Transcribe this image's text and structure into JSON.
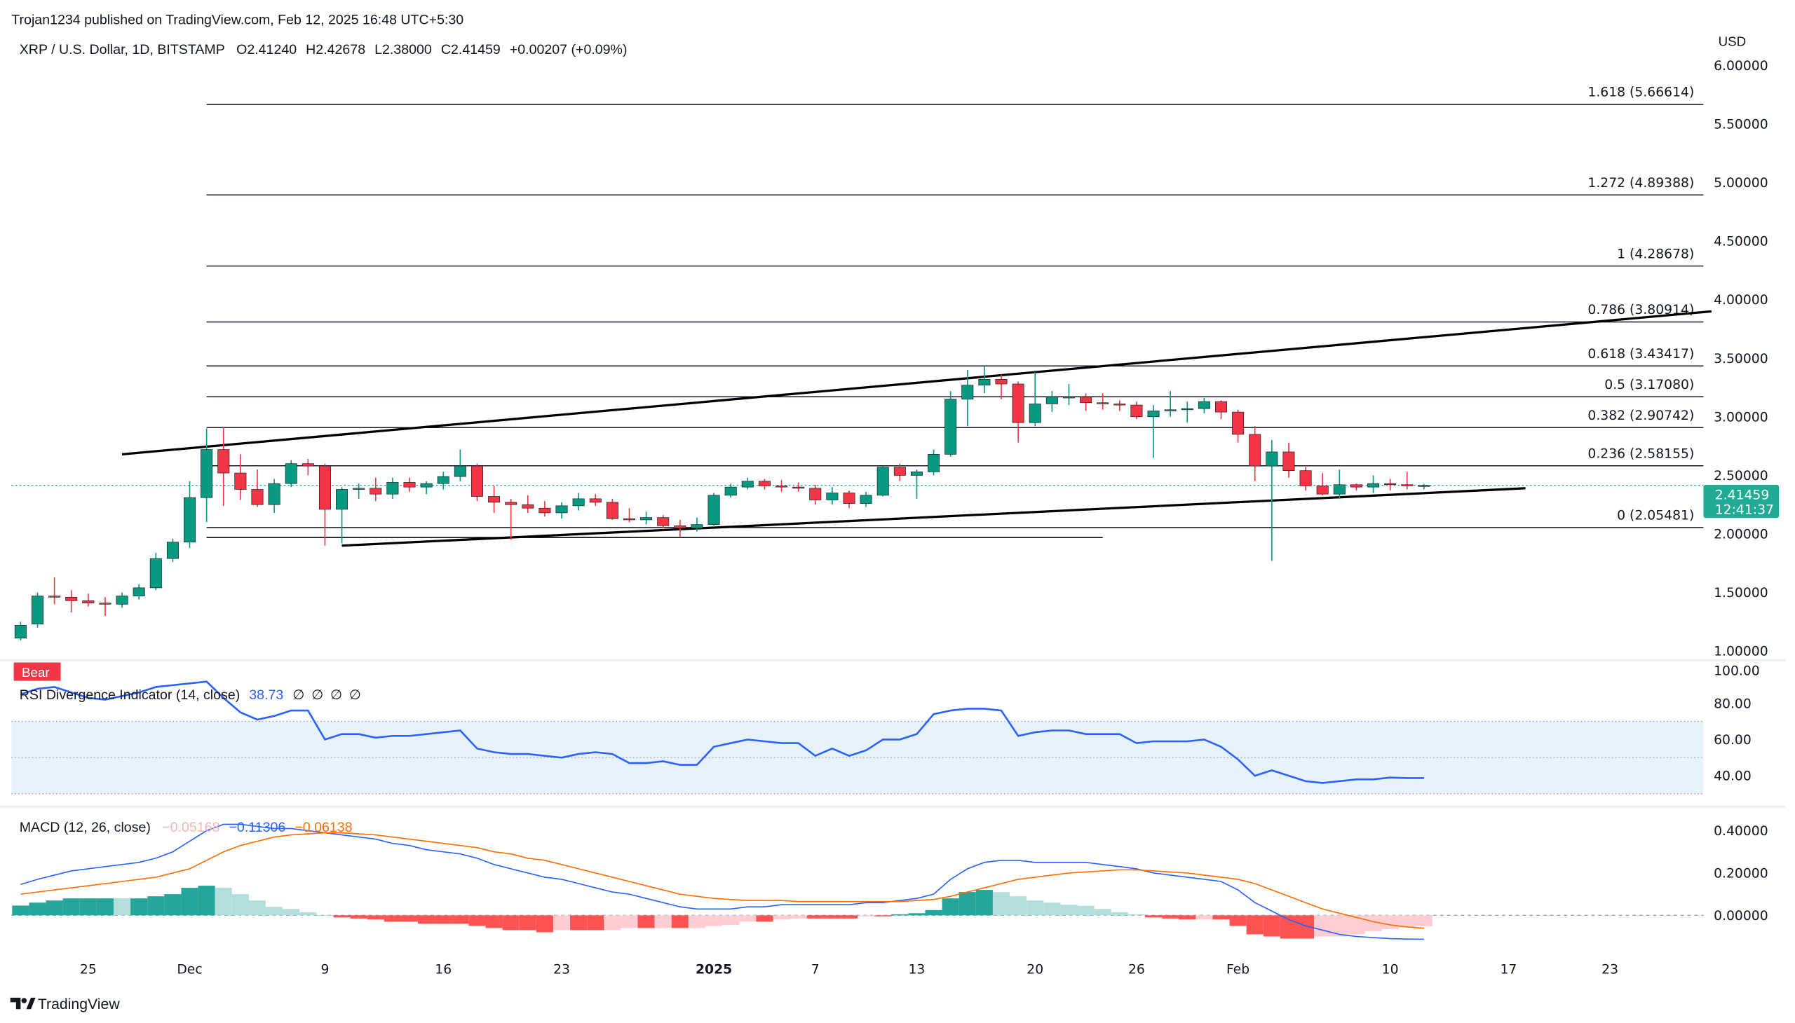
{
  "header": {
    "published": "Trojan1234 published on TradingView.com, Feb 12, 2025 16:48 UTC+5:30",
    "symbol": "XRP / U.S. Dollar, 1D, BITSTAMP",
    "open": "O2.41240",
    "high": "H2.42678",
    "low": "L2.38000",
    "close": "C2.41459",
    "change": "+0.00207 (+0.09%)"
  },
  "currency": "USD",
  "last_price": {
    "value": "2.41459",
    "countdown": "12:41:37",
    "color": "#22ab94"
  },
  "footer": {
    "brand": "TradingView"
  },
  "colors": {
    "up": "#089981",
    "down": "#f23645",
    "rsi": "#2962ff",
    "macd": "#2962ff",
    "signal": "#ff6d00"
  },
  "chart_data": {
    "type": "candlestick",
    "price_axis": {
      "ticks": [
        "1.00000",
        "1.50000",
        "2.00000",
        "2.50000",
        "3.00000",
        "3.50000",
        "4.00000",
        "4.50000",
        "5.00000",
        "5.50000",
        "6.00000"
      ],
      "range": [
        1.0,
        6.0
      ]
    },
    "x_ticks": [
      {
        "date": "2024-11-25",
        "label": "25"
      },
      {
        "date": "2024-12-01",
        "label": "Dec"
      },
      {
        "date": "2024-12-09",
        "label": "9"
      },
      {
        "date": "2024-12-16",
        "label": "16"
      },
      {
        "date": "2024-12-23",
        "label": "23"
      },
      {
        "date": "2025-01-01",
        "label": "2025",
        "bold": true
      },
      {
        "date": "2025-01-07",
        "label": "7"
      },
      {
        "date": "2025-01-13",
        "label": "13"
      },
      {
        "date": "2025-01-20",
        "label": "20"
      },
      {
        "date": "2025-01-26",
        "label": "26"
      },
      {
        "date": "2025-02-01",
        "label": "Feb"
      },
      {
        "date": "2025-02-10",
        "label": "10"
      },
      {
        "date": "2025-02-17",
        "label": "17"
      },
      {
        "date": "2025-02-23",
        "label": "23"
      }
    ],
    "candles_columns": [
      "date",
      "open",
      "high",
      "low",
      "close"
    ],
    "candles": [
      [
        "2024-11-21",
        1.11,
        1.25,
        1.09,
        1.22
      ],
      [
        "2024-11-22",
        1.23,
        1.5,
        1.2,
        1.47
      ],
      [
        "2024-11-23",
        1.47,
        1.63,
        1.4,
        1.46
      ],
      [
        "2024-11-24",
        1.46,
        1.52,
        1.33,
        1.43
      ],
      [
        "2024-11-25",
        1.43,
        1.49,
        1.38,
        1.41
      ],
      [
        "2024-11-26",
        1.41,
        1.46,
        1.3,
        1.4
      ],
      [
        "2024-11-27",
        1.4,
        1.5,
        1.37,
        1.47
      ],
      [
        "2024-11-28",
        1.47,
        1.57,
        1.44,
        1.54
      ],
      [
        "2024-11-29",
        1.54,
        1.84,
        1.52,
        1.79
      ],
      [
        "2024-11-30",
        1.79,
        1.96,
        1.76,
        1.93
      ],
      [
        "2024-12-01",
        1.93,
        2.45,
        1.88,
        2.31
      ],
      [
        "2024-12-02",
        2.31,
        2.9,
        2.1,
        2.72
      ],
      [
        "2024-12-03",
        2.72,
        2.91,
        2.24,
        2.52
      ],
      [
        "2024-12-04",
        2.52,
        2.68,
        2.29,
        2.38
      ],
      [
        "2024-12-05",
        2.38,
        2.55,
        2.23,
        2.25
      ],
      [
        "2024-12-06",
        2.25,
        2.47,
        2.18,
        2.43
      ],
      [
        "2024-12-07",
        2.43,
        2.63,
        2.4,
        2.6
      ],
      [
        "2024-12-08",
        2.6,
        2.64,
        2.5,
        2.58
      ],
      [
        "2024-12-09",
        2.58,
        2.6,
        1.9,
        2.21
      ],
      [
        "2024-12-10",
        2.21,
        2.4,
        1.92,
        2.38
      ],
      [
        "2024-12-11",
        2.38,
        2.43,
        2.3,
        2.39
      ],
      [
        "2024-12-12",
        2.39,
        2.48,
        2.28,
        2.34
      ],
      [
        "2024-12-13",
        2.34,
        2.48,
        2.3,
        2.44
      ],
      [
        "2024-12-14",
        2.44,
        2.48,
        2.36,
        2.4
      ],
      [
        "2024-12-15",
        2.4,
        2.45,
        2.34,
        2.43
      ],
      [
        "2024-12-16",
        2.43,
        2.53,
        2.38,
        2.49
      ],
      [
        "2024-12-17",
        2.49,
        2.72,
        2.45,
        2.58
      ],
      [
        "2024-12-18",
        2.58,
        2.6,
        2.28,
        2.32
      ],
      [
        "2024-12-19",
        2.32,
        2.41,
        2.18,
        2.27
      ],
      [
        "2024-12-20",
        2.27,
        2.3,
        1.95,
        2.25
      ],
      [
        "2024-12-21",
        2.25,
        2.33,
        2.18,
        2.22
      ],
      [
        "2024-12-22",
        2.22,
        2.28,
        2.15,
        2.18
      ],
      [
        "2024-12-23",
        2.18,
        2.27,
        2.13,
        2.24
      ],
      [
        "2024-12-24",
        2.24,
        2.35,
        2.2,
        2.3
      ],
      [
        "2024-12-25",
        2.3,
        2.34,
        2.24,
        2.27
      ],
      [
        "2024-12-26",
        2.27,
        2.3,
        2.12,
        2.13
      ],
      [
        "2024-12-27",
        2.13,
        2.22,
        2.1,
        2.12
      ],
      [
        "2024-12-28",
        2.12,
        2.19,
        2.08,
        2.14
      ],
      [
        "2024-12-29",
        2.14,
        2.16,
        2.05,
        2.07
      ],
      [
        "2024-12-30",
        2.07,
        2.12,
        1.97,
        2.05
      ],
      [
        "2024-12-31",
        2.05,
        2.14,
        2.02,
        2.08
      ],
      [
        "2025-01-01",
        2.08,
        2.35,
        2.07,
        2.33
      ],
      [
        "2025-01-02",
        2.33,
        2.43,
        2.31,
        2.4
      ],
      [
        "2025-01-03",
        2.4,
        2.48,
        2.38,
        2.45
      ],
      [
        "2025-01-04",
        2.45,
        2.47,
        2.38,
        2.41
      ],
      [
        "2025-01-05",
        2.41,
        2.46,
        2.36,
        2.4
      ],
      [
        "2025-01-06",
        2.4,
        2.44,
        2.36,
        2.39
      ],
      [
        "2025-01-07",
        2.39,
        2.42,
        2.25,
        2.29
      ],
      [
        "2025-01-08",
        2.29,
        2.4,
        2.25,
        2.35
      ],
      [
        "2025-01-09",
        2.35,
        2.37,
        2.22,
        2.26
      ],
      [
        "2025-01-10",
        2.26,
        2.36,
        2.23,
        2.33
      ],
      [
        "2025-01-11",
        2.33,
        2.58,
        2.32,
        2.57
      ],
      [
        "2025-01-12",
        2.57,
        2.6,
        2.45,
        2.5
      ],
      [
        "2025-01-13",
        2.5,
        2.55,
        2.3,
        2.53
      ],
      [
        "2025-01-14",
        2.53,
        2.72,
        2.5,
        2.68
      ],
      [
        "2025-01-15",
        2.68,
        3.22,
        2.66,
        3.15
      ],
      [
        "2025-01-16",
        3.15,
        3.4,
        2.92,
        3.27
      ],
      [
        "2025-01-17",
        3.27,
        3.43,
        3.2,
        3.32
      ],
      [
        "2025-01-18",
        3.32,
        3.36,
        3.15,
        3.28
      ],
      [
        "2025-01-19",
        3.28,
        3.3,
        2.78,
        2.95
      ],
      [
        "2025-01-20",
        2.95,
        3.38,
        2.92,
        3.11
      ],
      [
        "2025-01-21",
        3.11,
        3.22,
        3.04,
        3.17
      ],
      [
        "2025-01-22",
        3.17,
        3.28,
        3.1,
        3.17
      ],
      [
        "2025-01-23",
        3.17,
        3.2,
        3.05,
        3.12
      ],
      [
        "2025-01-24",
        3.12,
        3.2,
        3.06,
        3.11
      ],
      [
        "2025-01-25",
        3.11,
        3.14,
        3.05,
        3.1
      ],
      [
        "2025-01-26",
        3.1,
        3.13,
        2.98,
        3.0
      ],
      [
        "2025-01-27",
        3.0,
        3.1,
        2.65,
        3.05
      ],
      [
        "2025-01-28",
        3.05,
        3.22,
        3.0,
        3.06
      ],
      [
        "2025-01-29",
        3.06,
        3.13,
        2.95,
        3.07
      ],
      [
        "2025-01-30",
        3.07,
        3.16,
        3.03,
        3.13
      ],
      [
        "2025-01-31",
        3.13,
        3.14,
        2.98,
        3.04
      ],
      [
        "2025-02-01",
        3.04,
        3.06,
        2.78,
        2.85
      ],
      [
        "2025-02-02",
        2.85,
        2.92,
        2.45,
        2.58
      ],
      [
        "2025-02-03",
        2.58,
        2.8,
        1.77,
        2.7
      ],
      [
        "2025-02-04",
        2.7,
        2.78,
        2.48,
        2.54
      ],
      [
        "2025-02-05",
        2.54,
        2.57,
        2.37,
        2.41
      ],
      [
        "2025-02-06",
        2.41,
        2.52,
        2.33,
        2.34
      ],
      [
        "2025-02-07",
        2.34,
        2.55,
        2.3,
        2.42
      ],
      [
        "2025-02-08",
        2.42,
        2.43,
        2.37,
        2.4
      ],
      [
        "2025-02-09",
        2.4,
        2.5,
        2.35,
        2.43
      ],
      [
        "2025-02-10",
        2.43,
        2.47,
        2.37,
        2.42
      ],
      [
        "2025-02-11",
        2.42,
        2.53,
        2.38,
        2.41
      ],
      [
        "2025-02-12",
        2.4124,
        2.42678,
        2.38,
        2.41459
      ]
    ],
    "fibonacci": {
      "start_date": "2024-12-02",
      "levels": [
        {
          "ratio": "1.618",
          "price": 5.66614,
          "label": "1.618 (5.66614)"
        },
        {
          "ratio": "1.272",
          "price": 4.89388,
          "label": "1.272 (4.89388)"
        },
        {
          "ratio": "1",
          "price": 4.28678,
          "label": "1 (4.28678)"
        },
        {
          "ratio": "0.786",
          "price": 3.80914,
          "label": "0.786 (3.80914)"
        },
        {
          "ratio": "0.618",
          "price": 3.43417,
          "label": "0.618 (3.43417)"
        },
        {
          "ratio": "0.5",
          "price": 3.1708,
          "label": "0.5 (3.17080)"
        },
        {
          "ratio": "0.382",
          "price": 2.90742,
          "label": "0.382 (2.90742)"
        },
        {
          "ratio": "0.236",
          "price": 2.58155,
          "label": "0.236 (2.58155)"
        },
        {
          "ratio": "0",
          "price": 2.05481,
          "label": "0 (2.05481)"
        }
      ]
    },
    "trendlines": [
      {
        "from": [
          "2024-11-27",
          2.68
        ],
        "to": [
          "2025-03-01",
          3.9
        ]
      },
      {
        "from": [
          "2024-12-10",
          1.9
        ],
        "to": [
          "2025-02-18",
          2.39
        ]
      },
      {
        "from": [
          "2024-12-02",
          1.97
        ],
        "to": [
          "2025-01-24",
          1.97
        ]
      }
    ],
    "rsi": {
      "title": "RSI Divergence Indicator (14, close)",
      "value": "38.73",
      "na_markers": [
        "∅",
        "∅",
        "∅",
        "∅"
      ],
      "badge": "Bear",
      "ticks": [
        "100.00",
        "80.00",
        "60.00",
        "40.00"
      ],
      "range": [
        30,
        100
      ],
      "band": [
        30,
        70
      ],
      "values": [
        85,
        88,
        89,
        86,
        83,
        82,
        84,
        86,
        89,
        90,
        91,
        92,
        83,
        75,
        71,
        73,
        76,
        76,
        60,
        63,
        63,
        61,
        62,
        62,
        63,
        64,
        65,
        55,
        53,
        52,
        52,
        51,
        50,
        52,
        53,
        52,
        47,
        47,
        48,
        46,
        46,
        56,
        58,
        60,
        59,
        58,
        58,
        51,
        55,
        51,
        54,
        60,
        60,
        63,
        74,
        76,
        77,
        77,
        76,
        62,
        64,
        65,
        65,
        63,
        63,
        63,
        58,
        59,
        59,
        59,
        60,
        56,
        49,
        40,
        43,
        40,
        37,
        36,
        37,
        38,
        38,
        39,
        38.7,
        38.73
      ]
    },
    "macd": {
      "title": "MACD (12, 26, close)",
      "histogram_value": "−0.05168",
      "macd_value": "−0.11306",
      "signal_value": "−0.06138",
      "ticks": [
        "0.40000",
        "0.20000",
        "0.00000"
      ],
      "macd": [
        0.146,
        0.17,
        0.19,
        0.21,
        0.22,
        0.23,
        0.24,
        0.25,
        0.27,
        0.3,
        0.35,
        0.4,
        0.43,
        0.43,
        0.42,
        0.41,
        0.41,
        0.4,
        0.39,
        0.38,
        0.37,
        0.36,
        0.34,
        0.33,
        0.31,
        0.3,
        0.29,
        0.27,
        0.24,
        0.22,
        0.2,
        0.18,
        0.17,
        0.15,
        0.13,
        0.11,
        0.1,
        0.08,
        0.06,
        0.04,
        0.03,
        0.03,
        0.03,
        0.04,
        0.04,
        0.05,
        0.05,
        0.05,
        0.05,
        0.05,
        0.06,
        0.06,
        0.07,
        0.08,
        0.1,
        0.17,
        0.22,
        0.25,
        0.26,
        0.26,
        0.25,
        0.25,
        0.25,
        0.25,
        0.24,
        0.23,
        0.22,
        0.2,
        0.19,
        0.18,
        0.17,
        0.16,
        0.12,
        0.06,
        0.02,
        -0.02,
        -0.05,
        -0.07,
        -0.09,
        -0.1,
        -0.105,
        -0.11,
        -0.112,
        -0.113
      ],
      "signal": [
        0.1,
        0.11,
        0.12,
        0.13,
        0.14,
        0.15,
        0.16,
        0.17,
        0.18,
        0.2,
        0.22,
        0.26,
        0.3,
        0.33,
        0.35,
        0.37,
        0.38,
        0.385,
        0.39,
        0.39,
        0.385,
        0.38,
        0.37,
        0.36,
        0.35,
        0.34,
        0.33,
        0.32,
        0.3,
        0.29,
        0.27,
        0.26,
        0.24,
        0.22,
        0.2,
        0.18,
        0.16,
        0.14,
        0.12,
        0.1,
        0.09,
        0.08,
        0.075,
        0.07,
        0.07,
        0.07,
        0.065,
        0.065,
        0.065,
        0.065,
        0.065,
        0.065,
        0.065,
        0.07,
        0.075,
        0.09,
        0.11,
        0.13,
        0.15,
        0.17,
        0.18,
        0.19,
        0.2,
        0.205,
        0.21,
        0.215,
        0.215,
        0.21,
        0.205,
        0.2,
        0.19,
        0.18,
        0.17,
        0.15,
        0.12,
        0.09,
        0.06,
        0.03,
        0.01,
        -0.01,
        -0.03,
        -0.045,
        -0.055,
        -0.061
      ]
    }
  }
}
